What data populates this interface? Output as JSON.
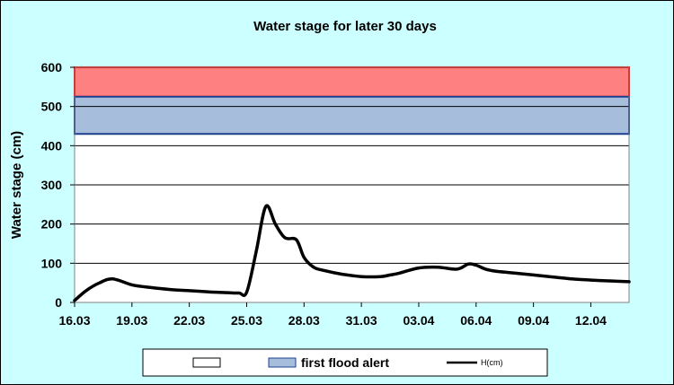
{
  "chart_data": {
    "type": "line",
    "title": "Water stage for later 30 days",
    "xlabel": "",
    "ylabel": "Water stage (cm)",
    "ylim": [
      0,
      600
    ],
    "yticks": [
      0,
      100,
      200,
      300,
      400,
      500,
      600
    ],
    "xticks": [
      "16.03",
      "19.03",
      "22.03",
      "25.03",
      "28.03",
      "31.03",
      "03.04",
      "06.04",
      "09.04",
      "12.04"
    ],
    "x_range_days": [
      0,
      29
    ],
    "grid": "horizontal",
    "legend_position": "bottom",
    "bands": [
      {
        "name": "",
        "from": 525,
        "to": 600,
        "fill": "#ff8080",
        "stroke": "#ff0000"
      },
      {
        "name": "first flood alert",
        "from": 430,
        "to": 525,
        "fill": "#a6bddb",
        "stroke": "#1f3f8f"
      }
    ],
    "series": [
      {
        "name": "H(cm)",
        "color": "#000000",
        "x": [
          0,
          0.6,
          1.3,
          2,
          3,
          4,
          5,
          6,
          7,
          8,
          8.6,
          9,
          9.5,
          10,
          10.5,
          11,
          11.6,
          12,
          12.5,
          13,
          14,
          15,
          16,
          16.5,
          17,
          18,
          19,
          20,
          20.6,
          21,
          21.5,
          22,
          23,
          24,
          25,
          26,
          27,
          28,
          29
        ],
        "values": [
          5,
          30,
          50,
          60,
          45,
          38,
          33,
          30,
          27,
          25,
          24,
          26,
          130,
          245,
          200,
          165,
          160,
          115,
          90,
          82,
          72,
          66,
          66,
          70,
          75,
          88,
          90,
          85,
          98,
          95,
          85,
          80,
          75,
          70,
          65,
          60,
          57,
          55,
          53
        ]
      }
    ]
  }
}
